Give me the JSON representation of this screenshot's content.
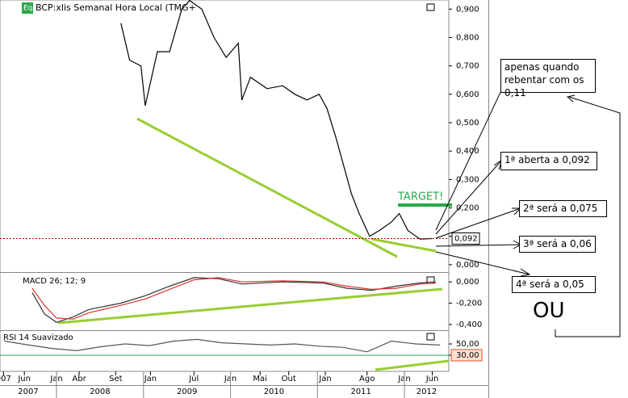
{
  "chart_data": [
    {
      "type": "line",
      "title": "BCP:xlis Semanal Hora Local (TMG+",
      "badge": "Eq",
      "color": "#000000",
      "x": [
        2008.74,
        2008.84,
        2008.97,
        2009.02,
        2009.16,
        2009.3,
        2009.44,
        2009.53,
        2009.67,
        2009.81,
        2009.95,
        2010.09,
        2010.13,
        2010.23,
        2010.42,
        2010.6,
        2010.74,
        2010.88,
        2011.02,
        2011.11,
        2011.21,
        2011.3,
        2011.39,
        2011.48,
        2011.6,
        2011.71,
        2011.85,
        2011.94,
        2012.04,
        2012.18,
        2012.32
      ],
      "values": [
        0.85,
        0.72,
        0.7,
        0.56,
        0.75,
        0.75,
        0.9,
        0.93,
        0.9,
        0.8,
        0.73,
        0.78,
        0.58,
        0.66,
        0.62,
        0.63,
        0.6,
        0.58,
        0.6,
        0.55,
        0.45,
        0.35,
        0.25,
        0.18,
        0.1,
        0.12,
        0.15,
        0.18,
        0.12,
        0.09,
        0.092
      ],
      "xlim": [
        2007.35,
        2012.51
      ],
      "ylim": [
        -0.026,
        0.932
      ],
      "yticks": [
        {
          "value": 0,
          "label": "0,000"
        },
        {
          "value": 0.1,
          "label": "0,100"
        },
        {
          "value": 0.2,
          "label": "0,200"
        },
        {
          "value": 0.3,
          "label": "0,300"
        },
        {
          "value": 0.4,
          "label": "0,400"
        },
        {
          "value": 0.5,
          "label": "0,500"
        },
        {
          "value": 0.6,
          "label": "0,600"
        },
        {
          "value": 0.7,
          "label": "0,700"
        },
        {
          "value": 0.8,
          "label": "0,800"
        },
        {
          "value": 0.9,
          "label": "0,900"
        }
      ],
      "xticks": [
        {
          "value": 2007.39,
          "label": "007"
        },
        {
          "value": 2007.63,
          "label": "Jun"
        },
        {
          "value": 2008.0,
          "label": "Jan"
        },
        {
          "value": 2008.26,
          "label": "Abr"
        },
        {
          "value": 2008.68,
          "label": "Set"
        },
        {
          "value": 2009.08,
          "label": "Jan"
        },
        {
          "value": 2009.58,
          "label": "Jul"
        },
        {
          "value": 2010.0,
          "label": "Jan"
        },
        {
          "value": 2010.34,
          "label": "Mai"
        },
        {
          "value": 2010.67,
          "label": "Out"
        },
        {
          "value": 2011.09,
          "label": "Jan"
        },
        {
          "value": 2011.57,
          "label": "Ago"
        },
        {
          "value": 2012.0,
          "label": "Jan"
        },
        {
          "value": 2012.32,
          "label": "Jun"
        }
      ],
      "year_ticks": [
        2007,
        2008,
        2009,
        2010,
        2011,
        2012
      ],
      "level": {
        "value": 0.092,
        "label": "0,092"
      }
    },
    {
      "type": "line",
      "title": "MACD 26; 12; 9",
      "x": [
        2007.72,
        2007.86,
        2008.0,
        2008.19,
        2008.37,
        2008.74,
        2009.02,
        2009.3,
        2009.58,
        2009.86,
        2010.13,
        2010.6,
        2011.06,
        2011.34,
        2011.62,
        2011.9,
        2012.18,
        2012.36
      ],
      "series": [
        {
          "color": "#333333",
          "values": [
            -0.1,
            -0.3,
            -0.38,
            -0.33,
            -0.26,
            -0.2,
            -0.13,
            -0.04,
            0.04,
            0.03,
            -0.02,
            0.0,
            -0.01,
            -0.06,
            -0.08,
            -0.04,
            -0.01,
            0.0
          ]
        },
        {
          "color": "#e03030",
          "values": [
            -0.06,
            -0.22,
            -0.34,
            -0.35,
            -0.29,
            -0.22,
            -0.16,
            -0.07,
            0.02,
            0.04,
            0.0,
            0.01,
            0.0,
            -0.04,
            -0.07,
            -0.06,
            -0.02,
            -0.01
          ]
        }
      ],
      "ylim": [
        -0.454,
        0.085
      ],
      "yticks": [
        {
          "value": 0,
          "label": "0,000"
        },
        {
          "value": -0.2,
          "label": "-0,200"
        },
        {
          "value": -0.4,
          "label": "-0,400"
        }
      ]
    },
    {
      "type": "line",
      "title": "RSI 14 Suavizado",
      "color": "#555555",
      "x": [
        2007.4,
        2007.68,
        2007.95,
        2008.23,
        2008.51,
        2008.79,
        2009.07,
        2009.35,
        2009.62,
        2009.9,
        2010.18,
        2010.46,
        2010.74,
        2011.02,
        2011.29,
        2011.57,
        2011.85,
        2012.13,
        2012.41
      ],
      "values": [
        55,
        48,
        42,
        38,
        45,
        50,
        47,
        55,
        58,
        52,
        50,
        48,
        50,
        46,
        44,
        36,
        55,
        50,
        48
      ],
      "ylim": [
        1.4,
        72.9
      ],
      "yticks": [
        {
          "value": 50,
          "label": "50,00"
        },
        {
          "value": 30,
          "label": "30,00"
        }
      ]
    }
  ],
  "annotations": {
    "target": "TARGET!",
    "notes": [
      "apenas quando rebentar com os 0,11",
      "1ª aberta a 0,092",
      "2ª será a 0,075",
      "3ª será a 0,06",
      "4ª será a 0,05"
    ],
    "or": "OU"
  }
}
